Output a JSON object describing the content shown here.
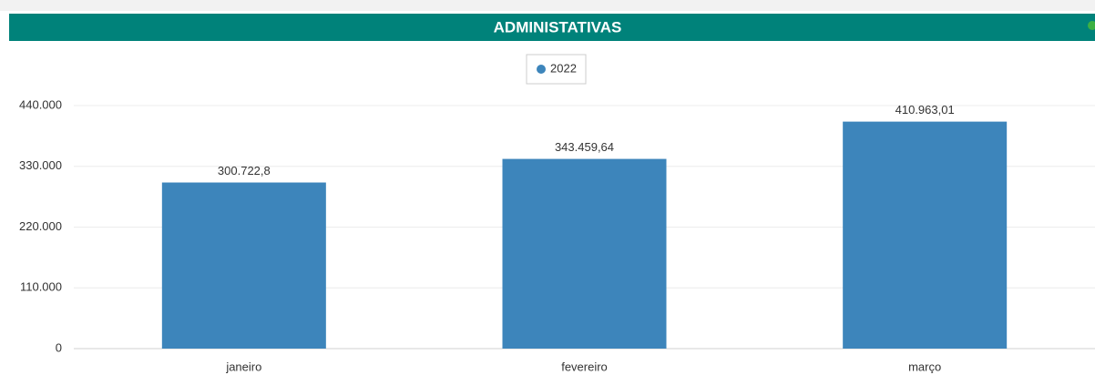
{
  "chart_data": {
    "type": "bar",
    "title": "ADMINISTATIVAS",
    "categories": [
      "janeiro",
      "fevereiro",
      "março"
    ],
    "series": [
      {
        "name": "2022",
        "color": "#3d85bb",
        "values": [
          300722.8,
          343459.64,
          410963.01
        ],
        "value_labels": [
          "300.722,8",
          "343.459,64",
          "410.963,01"
        ]
      }
    ],
    "ylim": [
      0,
      440000
    ],
    "yticks": [
      {
        "value": 0,
        "label": "0"
      },
      {
        "value": 110000,
        "label": "110.000"
      },
      {
        "value": 220000,
        "label": "220.000"
      },
      {
        "value": 330000,
        "label": "330.000"
      },
      {
        "value": 440000,
        "label": "440.000"
      }
    ],
    "grid": true,
    "legend": "top"
  }
}
